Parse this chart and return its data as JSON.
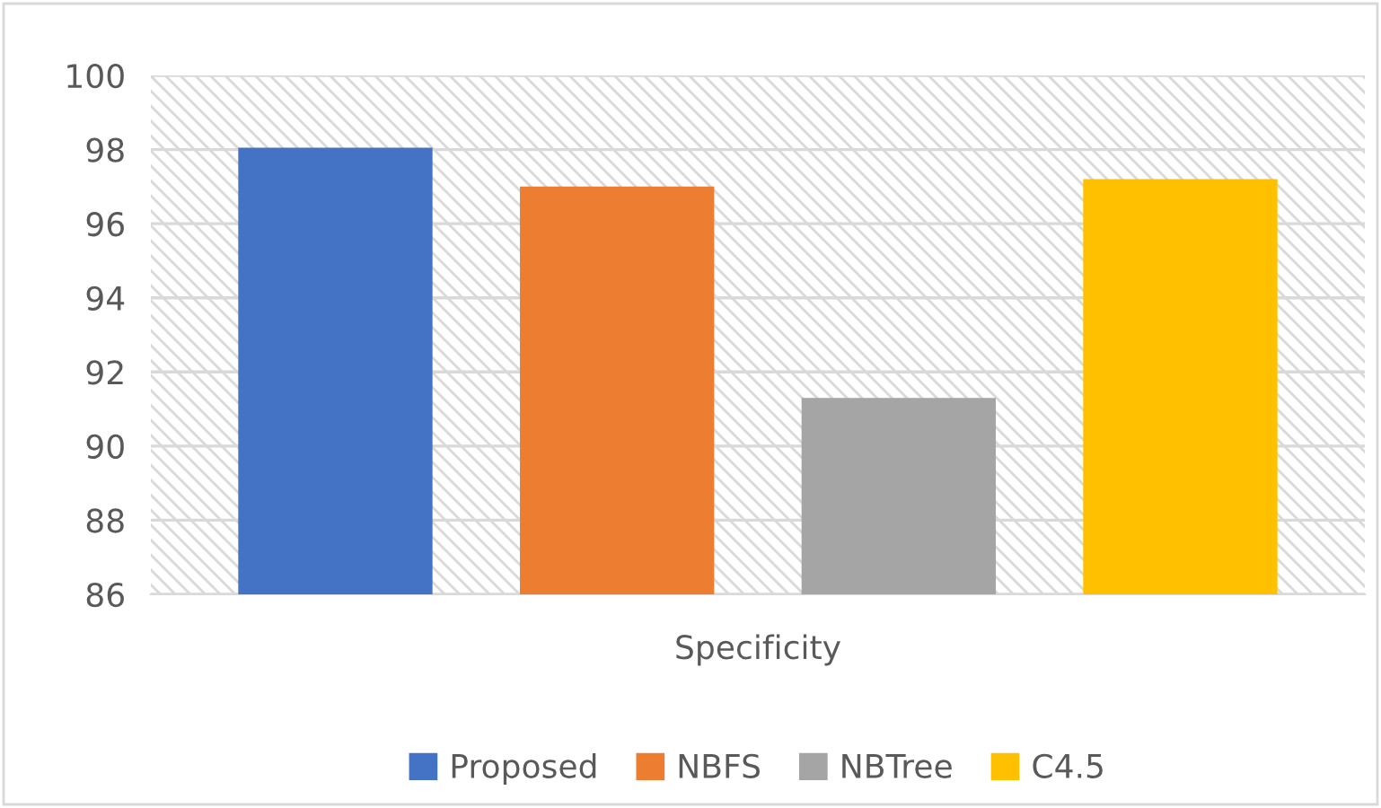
{
  "chart_data": {
    "type": "bar",
    "categories": [
      "Specificity"
    ],
    "series": [
      {
        "name": "Proposed",
        "color": "#4472c4",
        "values": [
          98.05
        ]
      },
      {
        "name": "NBFS",
        "color": "#ed7d31",
        "values": [
          97.0
        ]
      },
      {
        "name": "NBTree",
        "color": "#a5a5a5",
        "values": [
          91.3
        ]
      },
      {
        "name": "C4.5",
        "color": "#ffc000",
        "values": [
          97.2
        ]
      }
    ],
    "ylim": [
      86,
      100
    ],
    "yticks": [
      86,
      88,
      90,
      92,
      94,
      96,
      98,
      100
    ],
    "grid": "y",
    "legend": "bottom"
  }
}
